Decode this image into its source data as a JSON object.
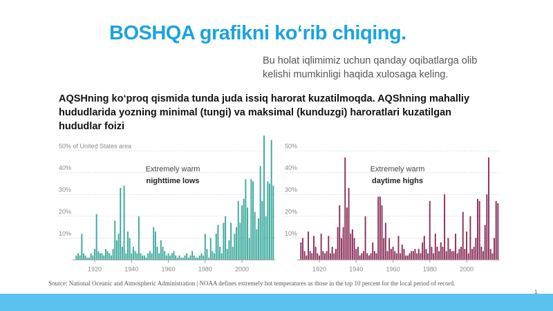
{
  "slide": {
    "title": "BOSHQA grafikni ko‘rib chiqing.",
    "subtitle_lines": [
      "Bu holat iqlimimiz uchun qanday oqibatlarga olib",
      "kelishi mumkinligi haqida xulosaga keling."
    ],
    "heading_lines": [
      "AQSHning ko‘proq qismida tunda juda issiq harorat kuzatilmoqda. AQShning mahalliy",
      "hududlarida yozning minimal (tungi) va maksimal (kunduzgi) haroratlari kuzatilgan",
      "hududlar foizi"
    ],
    "source": "Source: National Oceanic and Atmospheric Administration | NOAA defines extremely hot temperatures as those in the top 10 percent for the local period of record.",
    "page_number": "1"
  },
  "chart_data": [
    {
      "type": "bar",
      "annotations": [
        "Extremely warm",
        "nighttime lows"
      ],
      "color": "#3ba99c",
      "x": [
        1910,
        1911,
        1912,
        1913,
        1914,
        1915,
        1916,
        1917,
        1918,
        1919,
        1920,
        1921,
        1922,
        1923,
        1924,
        1925,
        1926,
        1927,
        1928,
        1929,
        1930,
        1931,
        1932,
        1933,
        1934,
        1935,
        1936,
        1937,
        1938,
        1939,
        1940,
        1941,
        1942,
        1943,
        1944,
        1945,
        1946,
        1947,
        1948,
        1949,
        1950,
        1951,
        1952,
        1953,
        1954,
        1955,
        1956,
        1957,
        1958,
        1959,
        1960,
        1961,
        1962,
        1963,
        1964,
        1965,
        1966,
        1967,
        1968,
        1969,
        1970,
        1971,
        1972,
        1973,
        1974,
        1975,
        1976,
        1977,
        1978,
        1979,
        1980,
        1981,
        1982,
        1983,
        1984,
        1985,
        1986,
        1987,
        1988,
        1989,
        1990,
        1991,
        1992,
        1993,
        1994,
        1995,
        1996,
        1997,
        1998,
        1999,
        2000,
        2001,
        2002,
        2003,
        2004,
        2005,
        2006,
        2007,
        2008,
        2009,
        2010,
        2011,
        2012,
        2013,
        2014,
        2015,
        2016,
        2017
      ],
      "values": [
        2,
        3,
        2,
        12,
        3,
        2,
        1,
        1,
        3,
        2,
        5,
        21,
        4,
        3,
        3,
        2,
        5,
        4,
        3,
        2,
        5,
        18,
        9,
        12,
        33,
        6,
        34,
        3,
        13,
        10,
        3,
        6,
        4,
        3,
        20,
        3,
        2,
        2,
        1,
        3,
        4,
        3,
        15,
        13,
        6,
        3,
        9,
        6,
        4,
        2,
        3,
        2,
        3,
        4,
        2,
        1,
        2,
        1,
        1,
        2,
        3,
        1,
        2,
        4,
        2,
        1,
        1,
        2,
        3,
        2,
        12,
        5,
        1,
        10,
        4,
        3,
        12,
        16,
        6,
        3,
        17,
        20,
        5,
        9,
        17,
        6,
        12,
        15,
        27,
        17,
        25,
        28,
        37,
        24,
        10,
        37,
        36,
        22,
        14,
        19,
        43,
        27,
        57,
        20,
        36,
        35,
        55,
        34
      ],
      "xlim": [
        1908,
        2018
      ],
      "xticks": [
        1920,
        1940,
        1960,
        1980,
        2000
      ],
      "ylim": [
        0,
        58
      ],
      "yticks": [
        {
          "value": 10,
          "label": "10%"
        },
        {
          "value": 20,
          "label": "20%"
        },
        {
          "value": 30,
          "label": "30%"
        },
        {
          "value": 40,
          "label": "40%"
        },
        {
          "value": 50,
          "label": "50% of United States area"
        }
      ],
      "grid": true
    },
    {
      "type": "bar",
      "annotations": [
        "Extremely warm",
        "daytime highs"
      ],
      "color": "#8b2e5a",
      "x": [
        1910,
        1911,
        1912,
        1913,
        1914,
        1915,
        1916,
        1917,
        1918,
        1919,
        1920,
        1921,
        1922,
        1923,
        1924,
        1925,
        1926,
        1927,
        1928,
        1929,
        1930,
        1931,
        1932,
        1933,
        1934,
        1935,
        1936,
        1937,
        1938,
        1939,
        1940,
        1941,
        1942,
        1943,
        1944,
        1945,
        1946,
        1947,
        1948,
        1949,
        1950,
        1951,
        1952,
        1953,
        1954,
        1955,
        1956,
        1957,
        1958,
        1959,
        1960,
        1961,
        1962,
        1963,
        1964,
        1965,
        1966,
        1967,
        1968,
        1969,
        1970,
        1971,
        1972,
        1973,
        1974,
        1975,
        1976,
        1977,
        1978,
        1979,
        1980,
        1981,
        1982,
        1983,
        1984,
        1985,
        1986,
        1987,
        1988,
        1989,
        1990,
        1991,
        1992,
        1993,
        1994,
        1995,
        1996,
        1997,
        1998,
        1999,
        2000,
        2001,
        2002,
        2003,
        2004,
        2005,
        2006,
        2007,
        2008,
        2009,
        2010,
        2011,
        2012,
        2013,
        2014,
        2015,
        2016,
        2017
      ],
      "values": [
        8,
        10,
        4,
        2,
        13,
        4,
        3,
        11,
        6,
        3,
        2,
        12,
        4,
        3,
        4,
        11,
        3,
        6,
        3,
        5,
        15,
        25,
        10,
        15,
        47,
        24,
        33,
        12,
        14,
        10,
        5,
        6,
        2,
        3,
        4,
        20,
        3,
        2,
        3,
        8,
        4,
        3,
        29,
        29,
        25,
        10,
        17,
        4,
        10,
        5,
        6,
        4,
        3,
        11,
        3,
        7,
        5,
        2,
        2,
        3,
        4,
        4,
        5,
        3,
        5,
        3,
        8,
        11,
        5,
        3,
        27,
        6,
        3,
        12,
        6,
        4,
        8,
        6,
        30,
        4,
        10,
        5,
        4,
        4,
        12,
        3,
        5,
        6,
        22,
        5,
        13,
        3,
        20,
        5,
        6,
        10,
        28,
        27,
        6,
        4,
        16,
        30,
        47,
        5,
        3,
        10,
        27,
        26
      ],
      "xlim": [
        1908,
        2018
      ],
      "xticks": [
        1920,
        1940,
        1960,
        1980,
        2000
      ],
      "ylim": [
        0,
        58
      ],
      "yticks": [
        {
          "value": 10,
          "label": "10%"
        },
        {
          "value": 20,
          "label": "20%"
        },
        {
          "value": 30,
          "label": "30%"
        },
        {
          "value": 40,
          "label": "40%"
        },
        {
          "value": 50,
          "label": "50%"
        }
      ],
      "grid": true
    }
  ]
}
